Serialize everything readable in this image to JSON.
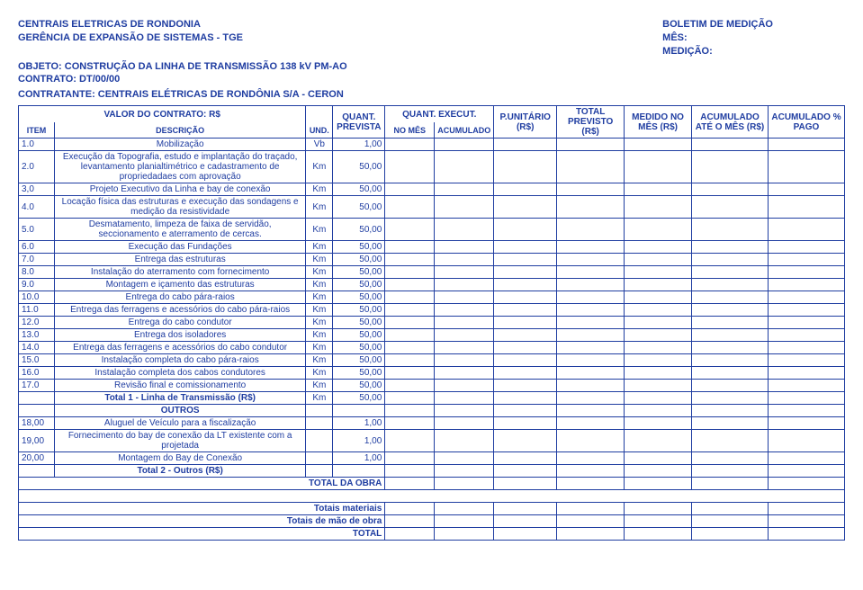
{
  "header": {
    "company": "CENTRAIS ELETRICAS DE RONDONIA",
    "dept": "GERÊNCIA DE EXPANSÃO DE SISTEMAS - TGE",
    "objeto": "OBJETO: CONSTRUÇÃO DA LINHA DE TRANSMISSÃO 138 kV PM-AO",
    "contrato": "CONTRATO: DT/00/00",
    "contratante": "CONTRATANTE: CENTRAIS ELÉTRICAS DE RONDÔNIA S/A  -  CERON",
    "boletim": "BOLETIM DE MEDIÇÃO",
    "mes": "MÊS:",
    "medicao": "MEDIÇÃO:"
  },
  "cols": {
    "valor_contrato": "VALOR DO CONTRATO: R$",
    "quant_prevista": "QUANT. PREVISTA",
    "quant_execut": "QUANT. EXECUT.",
    "p_unitario": "P.UNITÁRIO (R$)",
    "total_previsto": "TOTAL PREVISTO (R$)",
    "medido_mes": "MEDIDO NO MÊS (R$)",
    "acumulado_mes": "ACUMULADO ATÉ O MÊS (R$)",
    "acumulado_pago": "ACUMULADO % PAGO",
    "item": "ITEM",
    "descricao": "DESCRIÇÃO",
    "und": "UND.",
    "no_mes": "NO MÊS",
    "acumulado": "ACUMULADO"
  },
  "rows": [
    {
      "item": "1.0",
      "desc": "Mobilização",
      "und": "Vb",
      "q": "1,00"
    },
    {
      "item": "2.0",
      "desc": "Execução da Topografia, estudo e implantação do traçado, levantamento planialtimétrico e cadastramento de propriedadaes com aprovação",
      "und": "Km",
      "q": "50,00"
    },
    {
      "item": "3,0",
      "desc": "Projeto Executivo da Linha e bay de conexão",
      "und": "Km",
      "q": "50,00"
    },
    {
      "item": "4.0",
      "desc": "Locação física das estruturas e execução das sondagens e medição da resistividade",
      "und": "Km",
      "q": "50,00"
    },
    {
      "item": "5.0",
      "desc": "Desmatamento, limpeza de faixa de servidão, seccionamento e aterramento de cercas.",
      "und": "Km",
      "q": "50,00"
    },
    {
      "item": "6.0",
      "desc": "Execução das Fundações",
      "und": "Km",
      "q": "50,00"
    },
    {
      "item": "7.0",
      "desc": "Entrega das estruturas",
      "und": "Km",
      "q": "50,00"
    },
    {
      "item": "8.0",
      "desc": "Instalação do aterramento com fornecimento",
      "und": "Km",
      "q": "50,00"
    },
    {
      "item": "9.0",
      "desc": "Montagem e içamento das estruturas",
      "und": "Km",
      "q": "50,00"
    },
    {
      "item": "10.0",
      "desc": "Entrega do cabo pára-raios",
      "und": "Km",
      "q": "50,00"
    },
    {
      "item": "11.0",
      "desc": "Entrega das ferragens e acessórios do cabo pára-raios",
      "und": "Km",
      "q": "50,00"
    },
    {
      "item": "12.0",
      "desc": "Entrega do cabo condutor",
      "und": "Km",
      "q": "50,00"
    },
    {
      "item": "13.0",
      "desc": "Entrega dos isoladores",
      "und": "Km",
      "q": "50,00"
    },
    {
      "item": "14.0",
      "desc": "Entrega das ferragens e acessórios do cabo condutor",
      "und": "Km",
      "q": "50,00"
    },
    {
      "item": "15.0",
      "desc": "Instalação completa do cabo pára-raios",
      "und": "Km",
      "q": "50,00"
    },
    {
      "item": "16.0",
      "desc": "Instalação completa dos cabos condutores",
      "und": "Km",
      "q": "50,00"
    },
    {
      "item": "17.0",
      "desc": "Revisão final e comissionamento",
      "und": "Km",
      "q": "50,00"
    }
  ],
  "totals": {
    "total1": "Total 1 - Linha de Transmissão (R$)",
    "total1_und": "Km",
    "total1_q": "50,00",
    "outros": "OUTROS"
  },
  "outros": [
    {
      "item": "18,00",
      "desc": "Aluguel de Veículo para a fiscalização",
      "und": "",
      "q": "1,00"
    },
    {
      "item": "19,00",
      "desc": "Fornecimento do bay de conexão da LT existente com a projetada",
      "und": "",
      "q": "1,00"
    },
    {
      "item": "20,00",
      "desc": "Montagem do Bay de Conexão",
      "und": "",
      "q": "1,00"
    }
  ],
  "footer": {
    "total2": "Total 2 - Outros (R$)",
    "total_obra": "TOTAL DA OBRA",
    "totais_mat": "Totais materiais",
    "totais_mao": "Totais de mão de obra",
    "total": "TOTAL"
  },
  "colors": {
    "primary": "#1f3da1",
    "background": "#ffffff"
  }
}
